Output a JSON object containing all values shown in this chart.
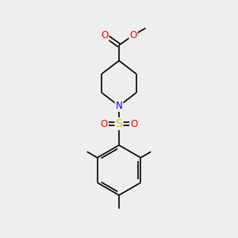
{
  "background_color": "#eeeeee",
  "atom_colors": {
    "N": "#0000ff",
    "O": "#ff0000",
    "S": "#cccc00"
  },
  "bond_color": "#000000",
  "bond_width": 1.2,
  "figsize": [
    3.0,
    3.0
  ],
  "dpi": 100,
  "xlim": [
    0,
    10
  ],
  "ylim": [
    0,
    10
  ]
}
